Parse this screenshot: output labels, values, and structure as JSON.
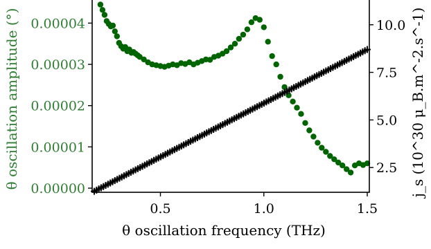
{
  "colors": {
    "left_axis": "#2e7d32",
    "scatter": "#006400",
    "cross": "#000000",
    "axes": "#000000"
  },
  "chart_data": {
    "type": "scatter",
    "title": "",
    "xlabel": "θ oscillation frequency (THz)",
    "ylabel_left": "θ oscillation amplitude (°)",
    "ylabel_right": "j_s (10^30 μ_B.m^-2.s^-1)",
    "xlim": [
      0.17,
      1.51
    ],
    "ylim_left": [
      -1e-06,
      4.56e-05
    ],
    "ylim_right": [
      1.2,
      11.3
    ],
    "x_ticks": [
      0.5,
      1.0,
      1.5
    ],
    "x_tick_labels": [
      "0.5",
      "1.0",
      "1.5"
    ],
    "left_ticks": [
      0,
      1e-05,
      2e-05,
      3e-05,
      4e-05
    ],
    "left_tick_labels": [
      "0.00000",
      "0.00001",
      "0.00002",
      "0.00003",
      "0.00004"
    ],
    "right_ticks": [
      2.5,
      5.0,
      7.5,
      10.0
    ],
    "right_tick_labels": [
      "2.5",
      "5.0",
      "7.5",
      "10.0"
    ],
    "grid": false,
    "series": [
      {
        "axis": "left",
        "marker": "circle",
        "x": [
          0.2,
          0.21,
          0.22,
          0.23,
          0.24,
          0.25,
          0.26,
          0.27,
          0.28,
          0.29,
          0.3,
          0.31,
          0.32,
          0.33,
          0.34,
          0.35,
          0.36,
          0.37,
          0.38,
          0.39,
          0.4,
          0.42,
          0.44,
          0.46,
          0.48,
          0.5,
          0.52,
          0.54,
          0.56,
          0.58,
          0.6,
          0.62,
          0.64,
          0.66,
          0.68,
          0.7,
          0.72,
          0.74,
          0.76,
          0.78,
          0.8,
          0.82,
          0.84,
          0.86,
          0.88,
          0.9,
          0.92,
          0.94,
          0.96,
          0.98,
          1.0,
          1.02,
          1.04,
          1.06,
          1.08,
          1.1,
          1.12,
          1.14,
          1.16,
          1.18,
          1.2,
          1.22,
          1.24,
          1.26,
          1.28,
          1.3,
          1.32,
          1.34,
          1.36,
          1.38,
          1.4,
          1.42,
          1.44,
          1.46,
          1.48,
          1.5
        ],
        "y": [
          4.55e-05,
          4.45e-05,
          4.32e-05,
          4.2e-05,
          4.05e-05,
          3.98e-05,
          3.92e-05,
          3.94e-05,
          3.8e-05,
          3.68e-05,
          3.52e-05,
          3.44e-05,
          3.38e-05,
          3.42e-05,
          3.32e-05,
          3.36e-05,
          3.28e-05,
          3.3e-05,
          3.26e-05,
          3.22e-05,
          3.18e-05,
          3.12e-05,
          3.05e-05,
          3e-05,
          2.98e-05,
          2.96e-05,
          2.94e-05,
          2.97e-05,
          3e-05,
          2.98e-05,
          3.03e-05,
          3.01e-05,
          3.05e-05,
          3e-05,
          3.04e-05,
          3.08e-05,
          3.12e-05,
          3.11e-05,
          3.18e-05,
          3.21e-05,
          3.26e-05,
          3.32e-05,
          3.41e-05,
          3.5e-05,
          3.62e-05,
          3.72e-05,
          3.85e-05,
          4.02e-05,
          4.12e-05,
          4.08e-05,
          3.9e-05,
          3.55e-05,
          3.2e-05,
          3e-05,
          2.7e-05,
          2.45e-05,
          2.25e-05,
          2.1e-05,
          1.95e-05,
          1.8e-05,
          1.58e-05,
          1.4e-05,
          1.25e-05,
          1.1e-05,
          9.8e-06,
          8.8e-06,
          7.8e-06,
          7e-06,
          6.2e-06,
          5.5e-06,
          4.6e-06,
          3.8e-06,
          5.5e-06,
          6e-06,
          5.6e-06,
          6e-06
        ]
      },
      {
        "axis": "right",
        "marker": "plus",
        "x_start": 0.18,
        "x_end": 1.5,
        "y_start": 1.25,
        "y_end": 8.7,
        "count": 120
      }
    ]
  }
}
